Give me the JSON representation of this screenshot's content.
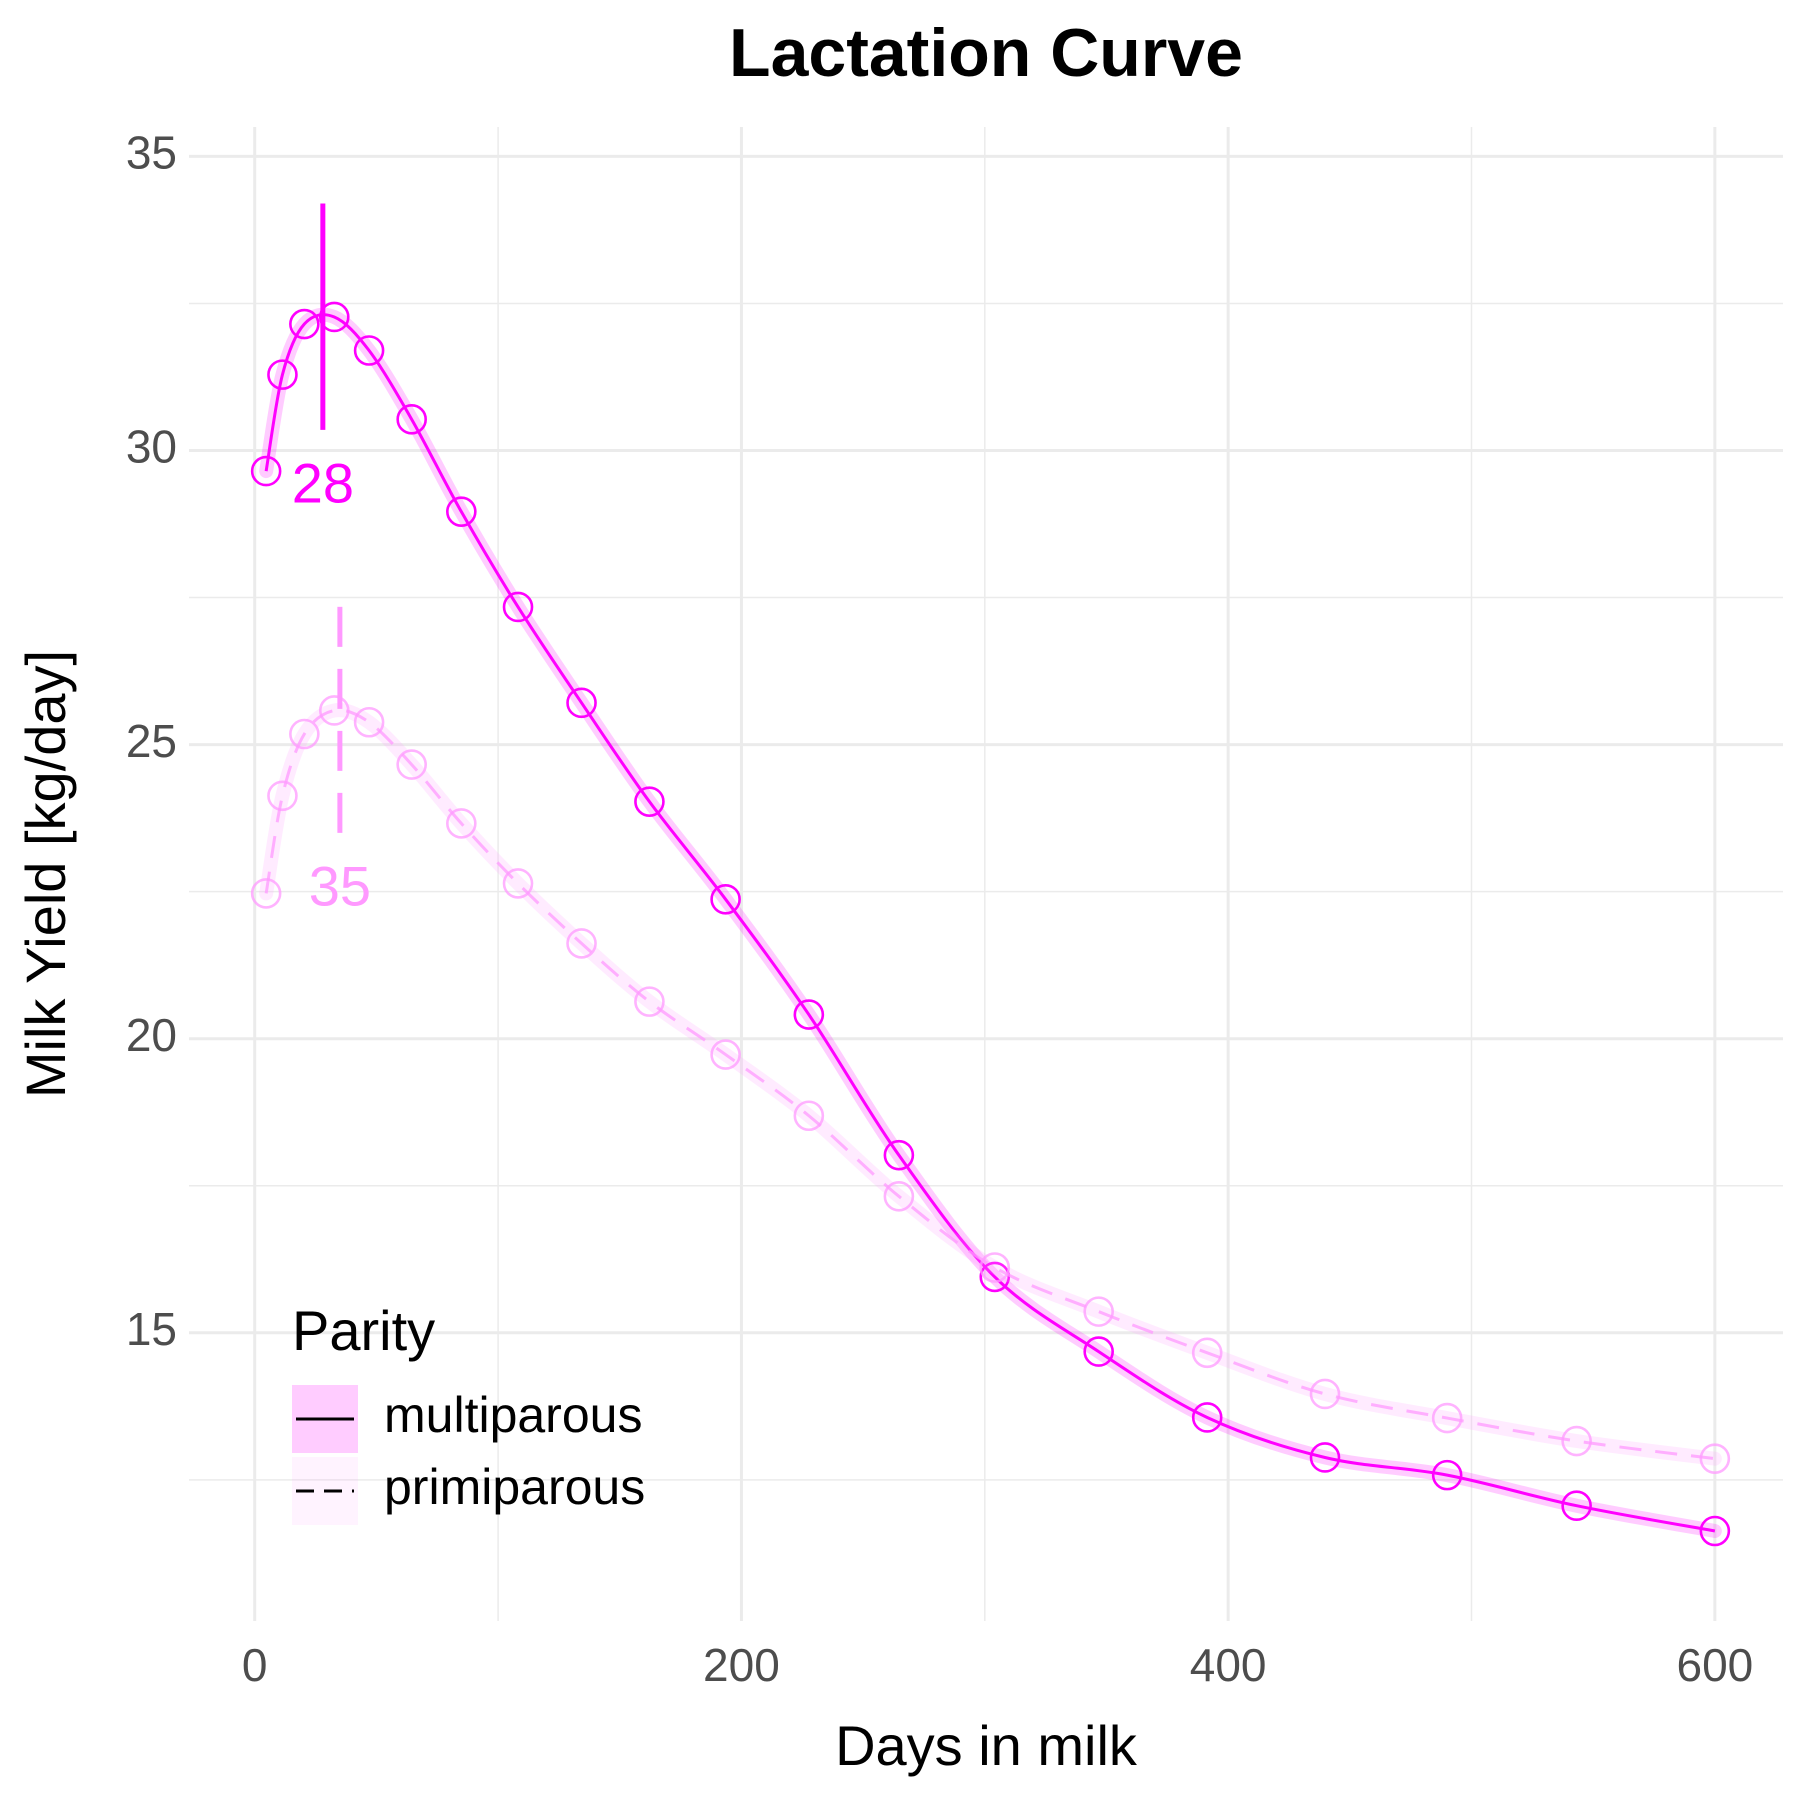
{
  "chart_data": {
    "type": "line",
    "title": "Lactation Curve",
    "x_label": "Days in milk",
    "y_label": "Milk Yield [kg/day]",
    "xlim": [
      -27,
      628
    ],
    "ylim": [
      10.1,
      35.5
    ],
    "xticks": [
      0,
      200,
      400,
      600
    ],
    "yticks": [
      15,
      20,
      25,
      30,
      35
    ],
    "xminor": [
      100,
      300,
      500
    ],
    "yminor": [
      12.5,
      17.5,
      22.5,
      27.5,
      32.5
    ],
    "grid": true,
    "legend": {
      "title": "Parity",
      "position": "bottom-left"
    },
    "x": [
      4.7,
      11.4,
      20.4,
      32.7,
      47,
      64.5,
      84.9,
      108.2,
      134.3,
      162.2,
      193.5,
      227.7,
      264.7,
      304.1,
      346.8,
      391.4,
      439.8,
      490,
      543.2,
      600
    ],
    "series": [
      {
        "name": "multiparous",
        "color": "#ff00ff",
        "linetype": "solid",
        "values": [
          29.65,
          31.29,
          32.15,
          32.27,
          31.7,
          30.53,
          28.96,
          27.34,
          25.71,
          24.03,
          22.37,
          20.41,
          18.02,
          15.95,
          14.68,
          13.56,
          12.88,
          12.58,
          12.06,
          11.63
        ],
        "peak_day": 28,
        "peak_range": [
          30.35,
          34.2
        ]
      },
      {
        "name": "primiparous",
        "color": "#ff99ff",
        "linetype": "dashed",
        "values": [
          22.47,
          24.13,
          25.18,
          25.58,
          25.38,
          24.66,
          23.66,
          22.64,
          21.62,
          20.63,
          19.73,
          18.69,
          17.32,
          16.11,
          15.36,
          14.66,
          13.96,
          13.55,
          13.16,
          12.86
        ],
        "peak_day": 35,
        "peak_range": [
          23.5,
          27.6
        ]
      }
    ]
  }
}
